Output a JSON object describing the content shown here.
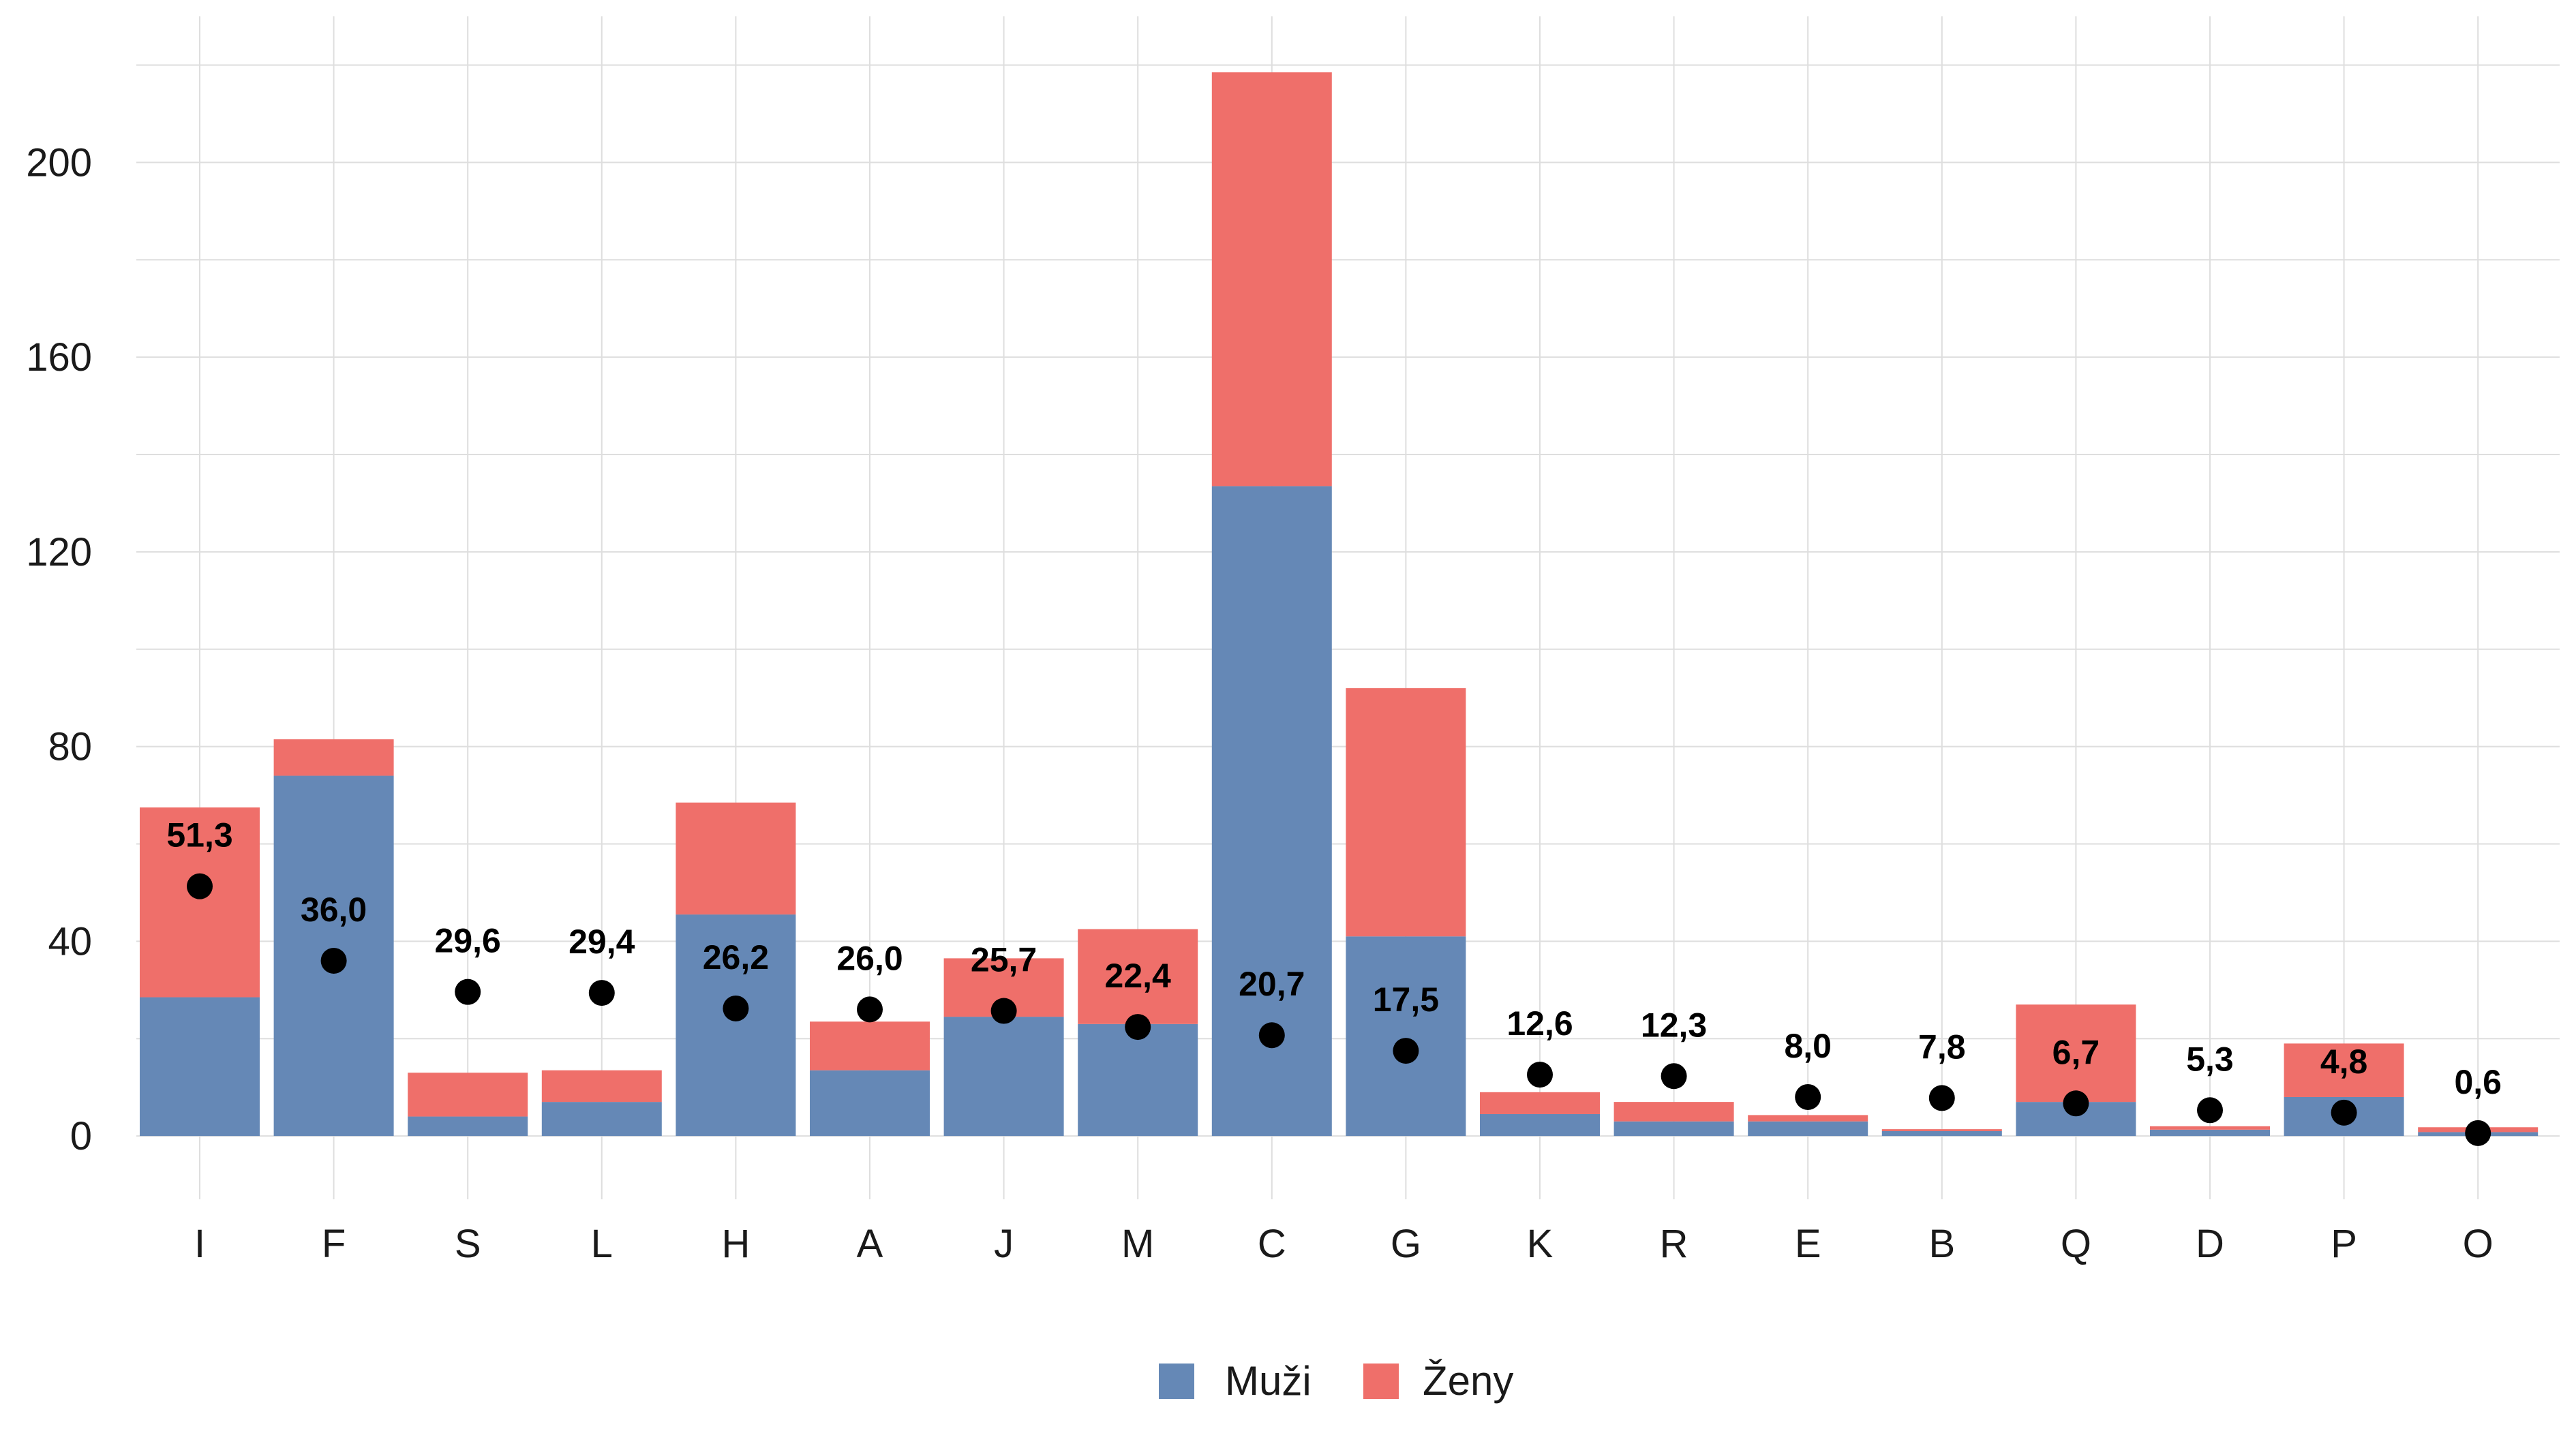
{
  "chart_data": {
    "type": "bar",
    "stacked": true,
    "categories": [
      "I",
      "F",
      "S",
      "L",
      "H",
      "A",
      "J",
      "M",
      "C",
      "G",
      "K",
      "R",
      "E",
      "B",
      "Q",
      "D",
      "P",
      "O"
    ],
    "series": [
      {
        "name": "Muži",
        "color": "#6588b6",
        "values": [
          28.5,
          74,
          4,
          7,
          45.5,
          13.5,
          24.5,
          23,
          133.5,
          41,
          4.5,
          3,
          3,
          1,
          7,
          1.3,
          8,
          0.8
        ]
      },
      {
        "name": "Ženy",
        "color": "#ef6f6a",
        "values": [
          39,
          7.5,
          9,
          6.5,
          23,
          10,
          12,
          19.5,
          85,
          51,
          4.5,
          4,
          1.3,
          0.4,
          20,
          0.7,
          11,
          1
        ]
      }
    ],
    "point_series": {
      "color": "#000000",
      "values": [
        51.3,
        36.0,
        29.6,
        29.4,
        26.2,
        26.0,
        25.7,
        22.4,
        20.7,
        17.5,
        12.6,
        12.3,
        8.0,
        7.8,
        6.7,
        5.3,
        4.8,
        0.6
      ],
      "labels": [
        "51,3",
        "36,0",
        "29,6",
        "29,4",
        "26,2",
        "26,0",
        "25,7",
        "22,4",
        "20,7",
        "17,5",
        "12,6",
        "12,3",
        "8,0",
        "7,8",
        "6,7",
        "5,3",
        "4,8",
        "0,6"
      ]
    },
    "y_ticks": [
      0,
      40,
      80,
      120,
      160,
      200
    ],
    "y_tick_labels": [
      "0",
      "40",
      "80",
      "120",
      "160",
      "200"
    ],
    "ylim": [
      -13,
      230
    ],
    "grid": true,
    "legend_position": "bottom",
    "title": "",
    "xlabel": "",
    "ylabel": ""
  }
}
